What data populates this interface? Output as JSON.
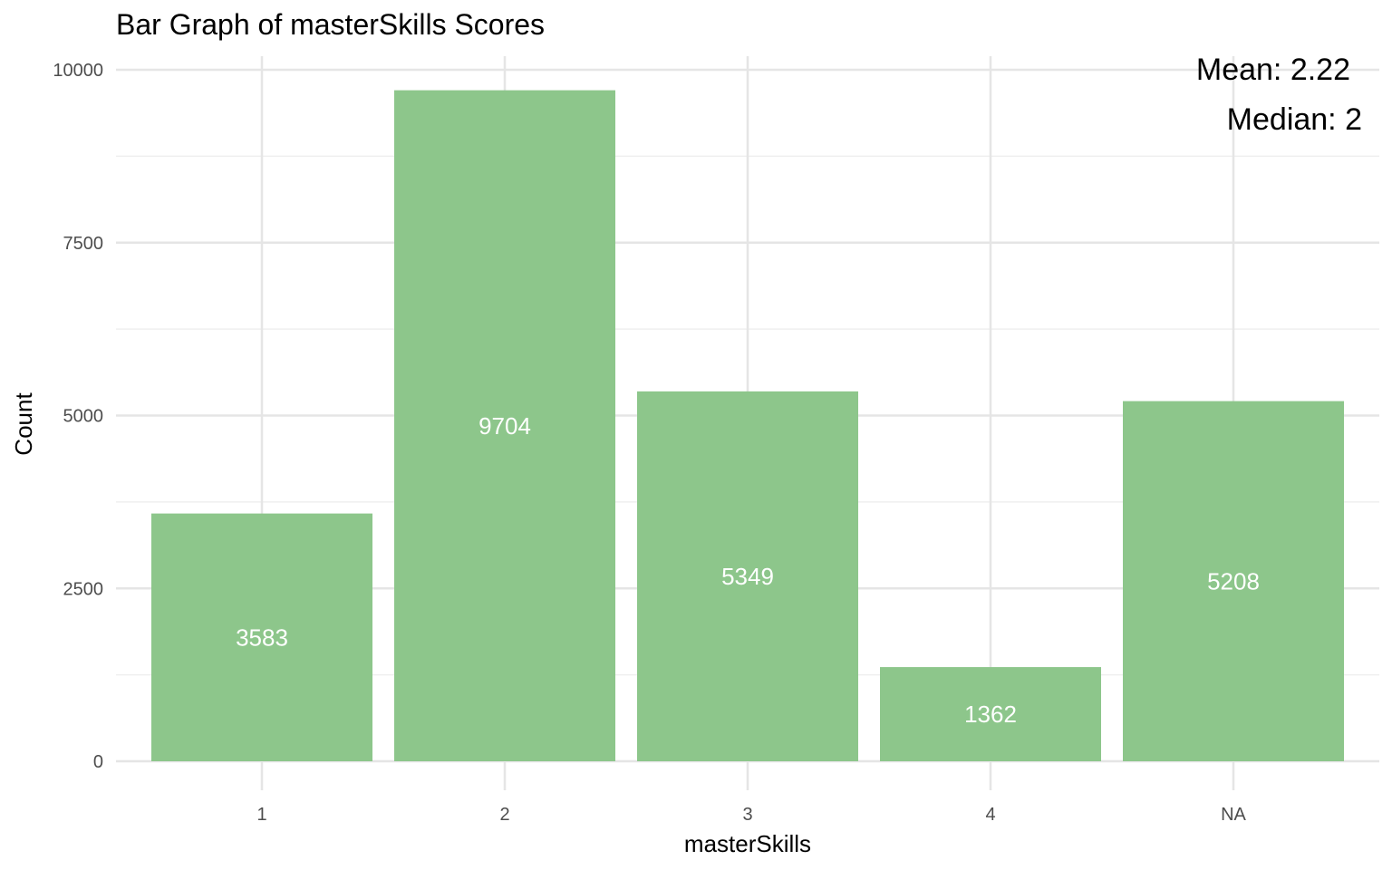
{
  "chart_data": {
    "type": "bar",
    "title": "Bar Graph of masterSkills Scores",
    "xlabel": "masterSkills",
    "ylabel": "Count",
    "categories": [
      "1",
      "2",
      "3",
      "4",
      "NA"
    ],
    "values": [
      3583,
      9704,
      5349,
      1362,
      5208
    ],
    "data_labels": [
      "3583",
      "9704",
      "5349",
      "1362",
      "5208"
    ],
    "ylim": [
      0,
      10000
    ],
    "yticks": [
      0,
      2500,
      5000,
      7500,
      10000
    ],
    "ytick_labels": [
      "0",
      "2500",
      "5000",
      "7500",
      "10000"
    ],
    "grid": true,
    "bar_color": "#8dc68b",
    "annotations": {
      "mean": "Mean: 2.22",
      "median": "Median: 2"
    }
  }
}
